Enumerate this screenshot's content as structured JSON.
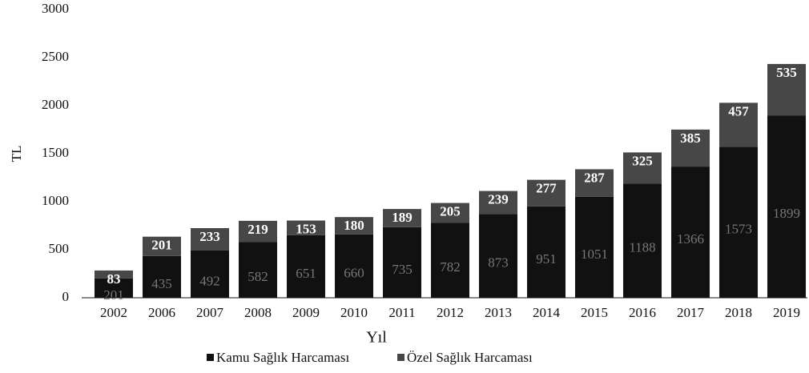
{
  "chart_data": {
    "type": "bar",
    "stacked": true,
    "categories": [
      "2002",
      "2006",
      "2007",
      "2008",
      "2009",
      "2010",
      "2011",
      "2012",
      "2013",
      "2014",
      "2015",
      "2016",
      "2017",
      "2018",
      "2019"
    ],
    "series": [
      {
        "name": "Kamu Sağlık Harcaması",
        "color": "#111111",
        "values": [
          201,
          435,
          492,
          582,
          651,
          660,
          735,
          782,
          873,
          951,
          1051,
          1188,
          1366,
          1573,
          1899
        ]
      },
      {
        "name": "Özel Sağlık Harcaması",
        "color": "#474747",
        "values": [
          83,
          201,
          233,
          219,
          153,
          180,
          189,
          205,
          239,
          277,
          287,
          325,
          385,
          457,
          535
        ]
      }
    ],
    "xlabel": "Yıl",
    "ylabel": "TL",
    "ylim": [
      0,
      3000
    ],
    "yticks": [
      0,
      500,
      1000,
      1500,
      2000,
      2500,
      3000
    ],
    "legend": "bottom"
  }
}
